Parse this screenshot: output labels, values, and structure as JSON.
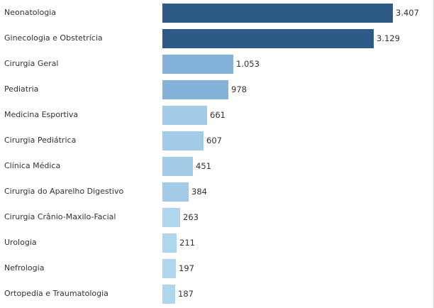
{
  "chart_data": {
    "type": "bar",
    "orientation": "horizontal",
    "categories": [
      "Neonatologia",
      "Ginecologia e Obstetrícia",
      "Cirurgia Geral",
      "Pediatria",
      "Medicina Esportiva",
      "Cirurgia Pediátrica",
      "Clínica Médica",
      "Cirurgia do Aparelho Digestivo",
      "Cirurgia Crânio-Maxilo-Facial",
      "Urologia",
      "Nefrologia",
      "Ortopedia e Traumatologia"
    ],
    "values": [
      3407,
      3129,
      1053,
      978,
      661,
      607,
      451,
      384,
      263,
      211,
      197,
      187
    ],
    "value_labels": [
      "3.407",
      "3.129",
      "1.053",
      "978",
      "661",
      "607",
      "451",
      "384",
      "263",
      "211",
      "197",
      "187"
    ],
    "colors": [
      "#2e5a88",
      "#2e5a88",
      "#84b2d8",
      "#84b2d8",
      "#a2cbe7",
      "#a2cbe7",
      "#a2cbe7",
      "#a2cbe7",
      "#aed4ee",
      "#aed4ee",
      "#aed4ee",
      "#aed4ee"
    ],
    "xlim": [
      0,
      3407
    ],
    "grid": false,
    "legend": "none"
  }
}
